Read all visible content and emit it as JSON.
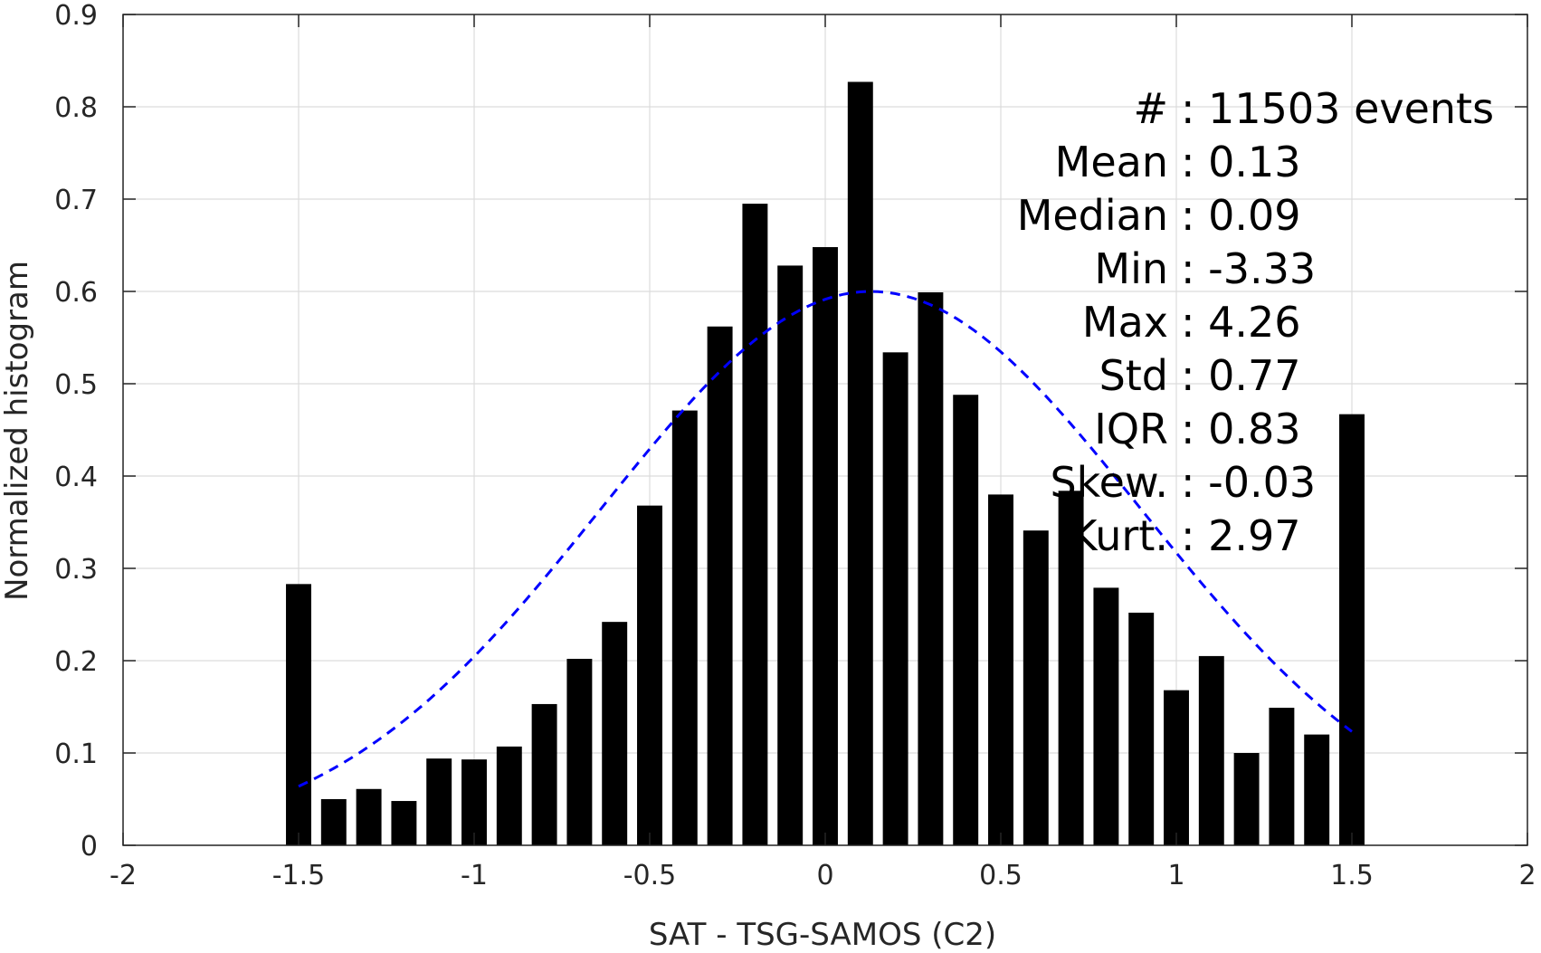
{
  "chart_data": {
    "type": "bar",
    "xlabel": "SAT - TSG-SAMOS (C2)",
    "ylabel": "Normalized histogram",
    "xlim": [
      -2,
      2
    ],
    "ylim": [
      0,
      0.9
    ],
    "xticks": [
      "-2",
      "-1.5",
      "-1",
      "-0.5",
      "0",
      "0.5",
      "1",
      "1.5",
      "2"
    ],
    "yticks": [
      "0",
      "0.1",
      "0.2",
      "0.3",
      "0.4",
      "0.5",
      "0.6",
      "0.7",
      "0.8",
      "0.9"
    ],
    "grid": true,
    "bar_color": "#000000",
    "bin_width": 0.1,
    "x": [
      -1.5,
      -1.4,
      -1.3,
      -1.2,
      -1.1,
      -1.0,
      -0.9,
      -0.8,
      -0.7,
      -0.6,
      -0.5,
      -0.4,
      -0.3,
      -0.2,
      -0.1,
      0.0,
      0.1,
      0.2,
      0.3,
      0.4,
      0.5,
      0.6,
      0.7,
      0.8,
      0.9,
      1.0,
      1.1,
      1.2,
      1.3,
      1.4,
      1.5
    ],
    "values": [
      0.283,
      0.05,
      0.061,
      0.048,
      0.094,
      0.093,
      0.107,
      0.153,
      0.202,
      0.242,
      0.368,
      0.471,
      0.562,
      0.695,
      0.628,
      0.648,
      0.827,
      0.534,
      0.599,
      0.488,
      0.38,
      0.341,
      0.384,
      0.279,
      0.252,
      0.168,
      0.205,
      0.1,
      0.149,
      0.12,
      0.467
    ],
    "fit": {
      "type": "normal",
      "mean": 0.13,
      "std": 0.77,
      "peak": 0.6,
      "x_range": [
        -1.5,
        1.5
      ],
      "color": "#0000ff",
      "style": "dashed"
    },
    "annotation": [
      "#  : 11503 events",
      "Mean : 0.13",
      "Median : 0.09",
      "Min : -3.33",
      "Max : 4.26",
      "Std : 0.77",
      "IQR : 0.83",
      "Skew. : -0.03",
      "Kurt. : 2.97"
    ]
  }
}
